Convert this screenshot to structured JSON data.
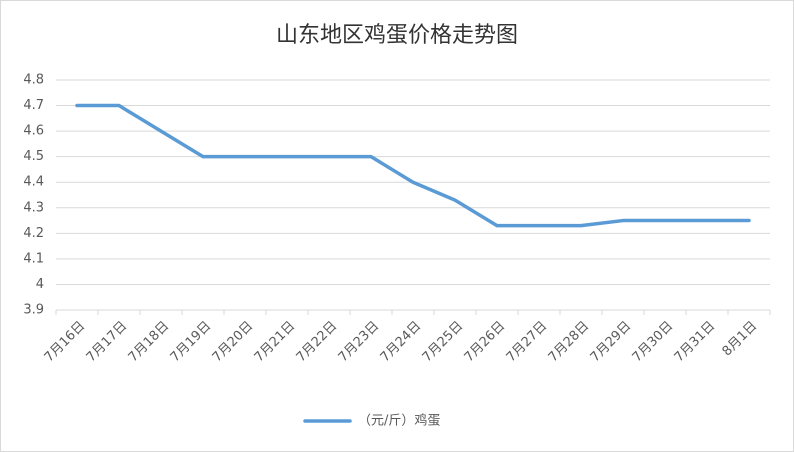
{
  "chart_data": {
    "type": "line",
    "title": "山东地区鸡蛋价格走势图",
    "categories": [
      "7月16日",
      "7月17日",
      "7月18日",
      "7月19日",
      "7月20日",
      "7月21日",
      "7月22日",
      "7月23日",
      "7月24日",
      "7月25日",
      "7月26日",
      "7月27日",
      "7月28日",
      "7月29日",
      "7月30日",
      "7月31日",
      "8月1日"
    ],
    "series": [
      {
        "name": "（元/斤）鸡蛋",
        "color": "#5b9bd5",
        "values": [
          4.7,
          4.7,
          4.6,
          4.5,
          4.5,
          4.5,
          4.5,
          4.5,
          4.4,
          4.33,
          4.23,
          4.23,
          4.23,
          4.25,
          4.25,
          4.25,
          4.25
        ]
      }
    ],
    "ylim": [
      3.9,
      4.8
    ],
    "yticks": [
      3.9,
      4,
      4.1,
      4.2,
      4.3,
      4.4,
      4.5,
      4.6,
      4.7,
      4.8
    ],
    "grid": true,
    "legend": "bottom"
  }
}
